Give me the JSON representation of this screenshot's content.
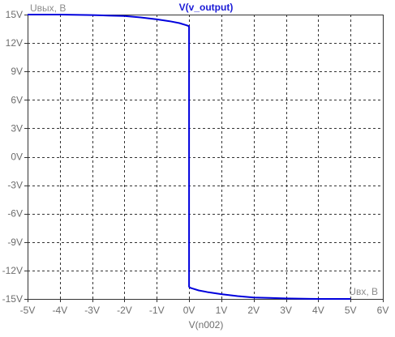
{
  "chart_data": {
    "type": "line",
    "title": "V(v_output)",
    "xlabel": "V(n002)",
    "y_corner_label": "Uвых, В",
    "x_corner_label": "Uвх, В",
    "x_ticks": [
      "-5V",
      "-4V",
      "-3V",
      "-2V",
      "-1V",
      "0V",
      "1V",
      "2V",
      "3V",
      "4V",
      "5V",
      "6V"
    ],
    "y_ticks": [
      "15V",
      "12V",
      "9V",
      "6V",
      "3V",
      "0V",
      "-3V",
      "-6V",
      "-9V",
      "-12V",
      "-15V"
    ],
    "xlim": [
      -5,
      6
    ],
    "ylim": [
      -15,
      15
    ],
    "grid": true,
    "series": [
      {
        "name": "V(v_output)",
        "color": "#0000dd",
        "x": [
          -5,
          -4,
          -3,
          -2.5,
          -2,
          -1.5,
          -1,
          -0.6,
          -0.3,
          -0.1,
          -0.02,
          0,
          0,
          0.02,
          0.1,
          0.3,
          0.6,
          1,
          1.5,
          2,
          2.5,
          3,
          4,
          5
        ],
        "y": [
          15,
          15,
          14.95,
          14.9,
          14.85,
          14.7,
          14.5,
          14.3,
          14.1,
          13.9,
          13.8,
          13.7,
          -13.7,
          -13.8,
          -13.9,
          -14.1,
          -14.3,
          -14.5,
          -14.7,
          -14.85,
          -14.9,
          -14.95,
          -15,
          -15
        ]
      }
    ]
  },
  "colors": {
    "trace": "#0000dd",
    "title": "#1a1ad6",
    "grid": "#333333",
    "labels": "#6e6e6e"
  }
}
